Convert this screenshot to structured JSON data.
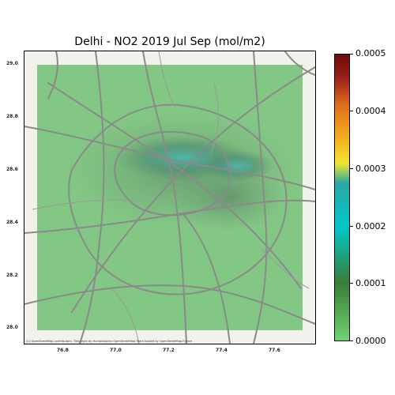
{
  "title": "Delhi - NO2 2019 Jul Sep (mol/m2)",
  "attribution": "(C) OpenStreetMap contributors, Tiles style by Humanitarian OpenStreetMap Team hosted by OpenStreetMap France",
  "x_ticks": [
    "76.8",
    "77.0",
    "77.2",
    "77.4",
    "77.6"
  ],
  "y_ticks": [
    "29.0",
    "28.8",
    "28.6",
    "28.4",
    "28.2",
    "28.0"
  ],
  "colorbar": {
    "ticks": [
      "0.0000",
      "0.0001",
      "0.0002",
      "0.0003",
      "0.0004",
      "0.0005"
    ],
    "min": 0.0,
    "max": 0.0005
  },
  "colors": {
    "overlay_green": "#7cc47f",
    "hotspot_teal": "#4db3a6",
    "road_gray": "#8a8a8a",
    "basemap": "#f3f1ec"
  },
  "map_extent": {
    "lon": [
      76.7,
      77.77
    ],
    "lat": [
      27.95,
      29.05
    ]
  }
}
